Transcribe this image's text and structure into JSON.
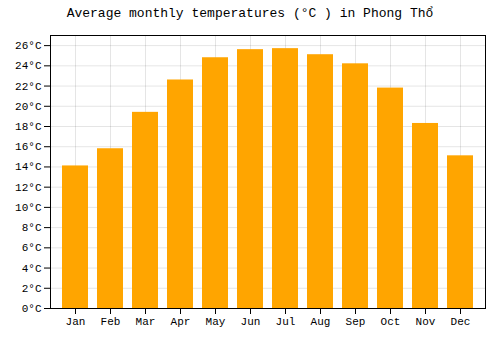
{
  "chart_data": {
    "type": "bar",
    "title": "Average monthly temperatures (°C ) in Phong Thổ",
    "categories": [
      "Jan",
      "Feb",
      "Mar",
      "Apr",
      "May",
      "Jun",
      "Jul",
      "Aug",
      "Sep",
      "Oct",
      "Nov",
      "Dec"
    ],
    "values": [
      14.1,
      15.8,
      19.4,
      22.6,
      24.8,
      25.6,
      25.7,
      25.1,
      24.2,
      21.8,
      18.3,
      15.1
    ],
    "color": "#FFA500",
    "ylim": [
      0,
      27
    ],
    "yticks": [
      {
        "value": 0,
        "label": "0°C"
      },
      {
        "value": 2,
        "label": "2°C"
      },
      {
        "value": 4,
        "label": "4°C"
      },
      {
        "value": 6,
        "label": "6°C"
      },
      {
        "value": 8,
        "label": "8°C"
      },
      {
        "value": 10,
        "label": "10°C"
      },
      {
        "value": 12,
        "label": "12°C"
      },
      {
        "value": 14,
        "label": "14°C"
      },
      {
        "value": 16,
        "label": "16°C"
      },
      {
        "value": 18,
        "label": "18°C"
      },
      {
        "value": 20,
        "label": "20°C"
      },
      {
        "value": 22,
        "label": "22°C"
      },
      {
        "value": 24,
        "label": "24°C"
      },
      {
        "value": 26,
        "label": "26°C"
      }
    ],
    "grid": true
  }
}
